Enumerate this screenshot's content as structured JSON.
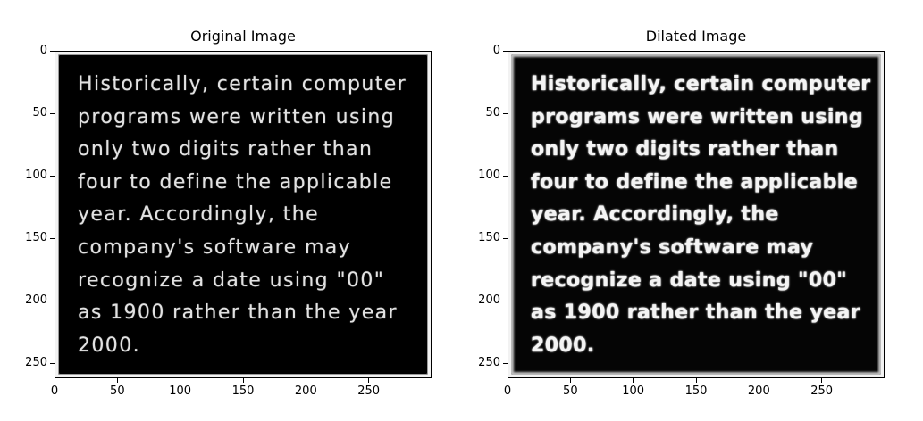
{
  "chart_data": [
    {
      "type": "image",
      "title": "Original Image",
      "image_text_lines": [
        "Historically, certain computer",
        "programs were written using",
        "only two digits rather than",
        "four to define the applicable",
        "year. Accordingly, the",
        "company's software may",
        "recognize a date using \"00\"",
        "as 1900 rather than the year",
        "2000."
      ],
      "xlim": [
        0,
        300
      ],
      "ylim": [
        262,
        0
      ],
      "x_ticks": [
        0,
        50,
        100,
        150,
        200,
        250
      ],
      "y_ticks": [
        0,
        50,
        100,
        150,
        200,
        250
      ],
      "grid": false,
      "colormap": "gray",
      "style": "original"
    },
    {
      "type": "image",
      "title": "Dilated Image",
      "image_text_lines": [
        "Historically, certain computer",
        "programs were written using",
        "only two digits rather than",
        "four to define the applicable",
        "year. Accordingly, the",
        "company's software may",
        "recognize a date using \"00\"",
        "as 1900 rather than the year",
        "2000."
      ],
      "xlim": [
        0,
        300
      ],
      "ylim": [
        262,
        0
      ],
      "x_ticks": [
        0,
        50,
        100,
        150,
        200,
        250
      ],
      "y_ticks": [
        0,
        50,
        100,
        150,
        200,
        250
      ],
      "grid": false,
      "colormap": "gray",
      "style": "dilated"
    }
  ]
}
